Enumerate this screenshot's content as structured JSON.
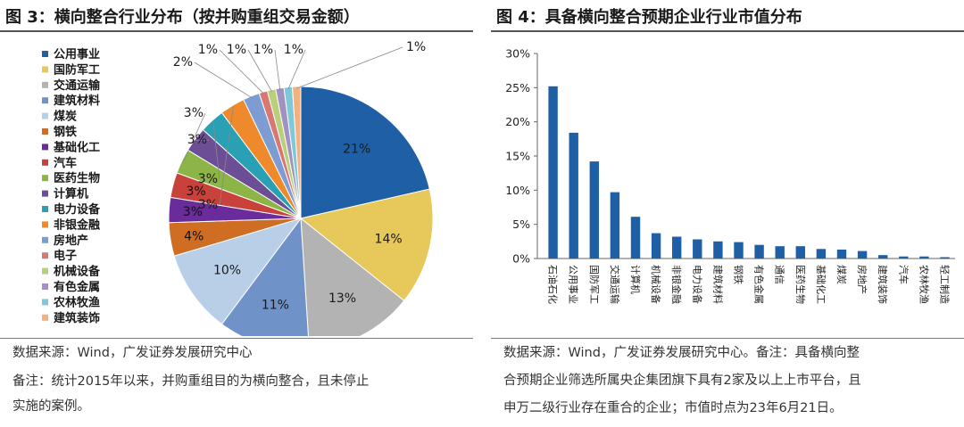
{
  "left": {
    "title": "图 3：横向整合行业分布（按并购重组交易金额）",
    "source": "数据来源：Wind，广发证券发展研究中心",
    "note_lines": [
      "备注：统计2015年以来，并购重组目的为横向整合，且未停止",
      "实施的案例。"
    ]
  },
  "right": {
    "title": "图 4：具备横向整合预期企业行业市值分布",
    "source_lines": [
      "数据来源：Wind，广发证券发展研究中心。备注：具备横向整",
      "合预期企业筛选所属央企集团旗下具有2家及以上上市平台，且",
      "申万二级行业存在重合的企业；市值时点为23年6月21日。"
    ]
  },
  "chart_data": [
    {
      "type": "pie",
      "legend_position": "left",
      "slices": [
        {
          "label": "公用事业",
          "value": 21,
          "display": "21%",
          "color": "#1f5fa6"
        },
        {
          "label": "国防军工",
          "value": 14,
          "display": "14%",
          "color": "#e7c85a"
        },
        {
          "label": "交通运输",
          "value": 13,
          "display": "13%",
          "color": "#b3b3b3"
        },
        {
          "label": "建筑材料",
          "value": 11,
          "display": "11%",
          "color": "#6f93c8"
        },
        {
          "label": "煤炭",
          "value": 10,
          "display": "10%",
          "color": "#b9cfe8"
        },
        {
          "label": "钢铁",
          "value": 4,
          "display": "4%",
          "color": "#cf6d22"
        },
        {
          "label": "基础化工",
          "value": 3,
          "display": "3%",
          "color": "#6a2b9b"
        },
        {
          "label": "汽车",
          "value": 3,
          "display": "3%",
          "color": "#c8413b"
        },
        {
          "label": "医药生物",
          "value": 3,
          "display": "3%",
          "color": "#8db446"
        },
        {
          "label": "计算机",
          "value": 3,
          "display": "3%",
          "color": "#6b4e95"
        },
        {
          "label": "电力设备",
          "value": 3,
          "display": "3%",
          "color": "#2aa0b5"
        },
        {
          "label": "非银金融",
          "value": 3,
          "display": "3%",
          "color": "#ee8a2c"
        },
        {
          "label": "房地产",
          "value": 2,
          "display": "2%",
          "color": "#7c9cd2"
        },
        {
          "label": "电子",
          "value": 1,
          "display": "1%",
          "color": "#d97772"
        },
        {
          "label": "机械设备",
          "value": 1,
          "display": "1%",
          "color": "#b8d07a"
        },
        {
          "label": "有色金属",
          "value": 1,
          "display": "1%",
          "color": "#a192c2"
        },
        {
          "label": "农林牧渔",
          "value": 1,
          "display": "1%",
          "color": "#7fc8d8"
        },
        {
          "label": "建筑装饰",
          "value": 1,
          "display": "1%",
          "color": "#f5b17d"
        }
      ]
    },
    {
      "type": "bar",
      "categories": [
        "石油石化",
        "公用事业",
        "国防军工",
        "交通运输",
        "计算机",
        "机械设备",
        "非银金融",
        "电力设备",
        "建筑材料",
        "钢铁",
        "有色金属",
        "通信",
        "医药生物",
        "基础化工",
        "煤炭",
        "房地产",
        "建筑装饰",
        "汽车",
        "农林牧渔",
        "轻工制造"
      ],
      "values": [
        25.2,
        18.4,
        14.2,
        9.7,
        6.1,
        3.7,
        3.2,
        2.8,
        2.5,
        2.4,
        2.0,
        1.8,
        1.8,
        1.4,
        1.3,
        1.1,
        0.5,
        0.3,
        0.3,
        0.2
      ],
      "yunit": "%",
      "ylim": [
        0,
        30
      ],
      "yticks": [
        0,
        5,
        10,
        15,
        20,
        25,
        30
      ],
      "ytick_labels": [
        "0%",
        "5%",
        "10%",
        "15%",
        "20%",
        "25%",
        "30%"
      ],
      "bar_color": "#1f5fa6",
      "grid": false
    }
  ]
}
